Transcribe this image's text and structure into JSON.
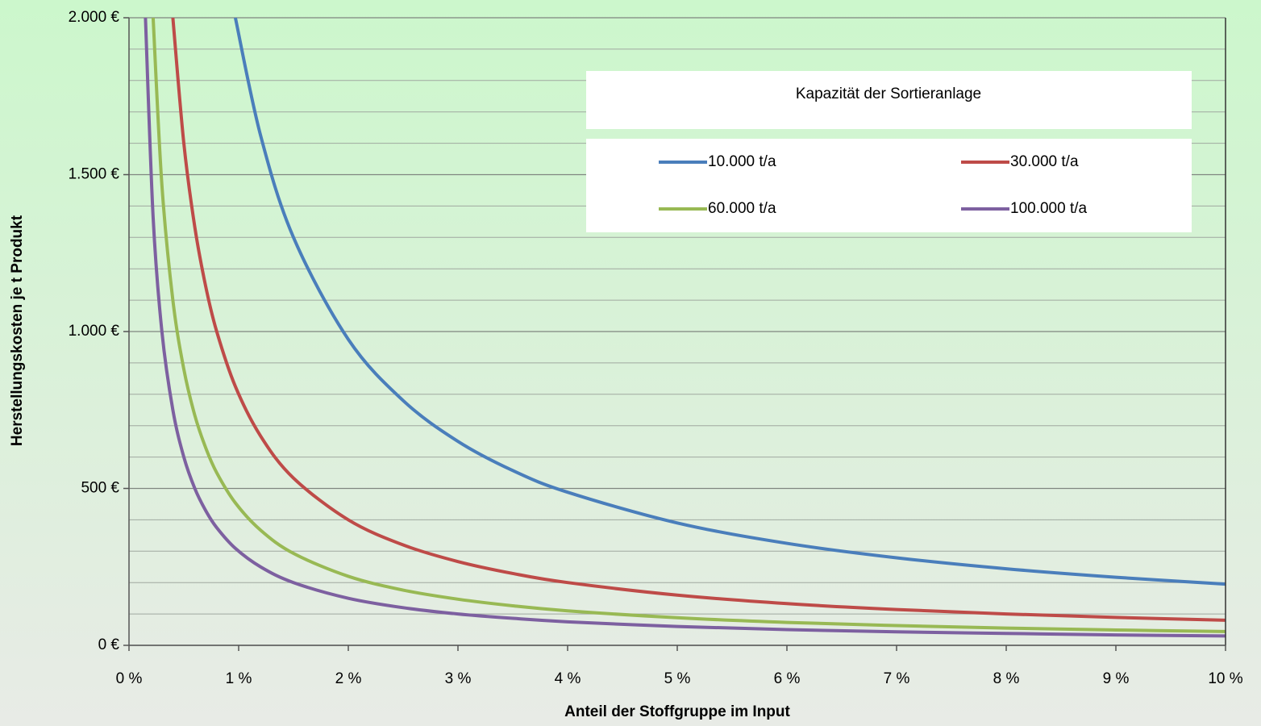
{
  "chart_data": {
    "type": "line",
    "x_label": "Anteil der Stoffgruppe im Input",
    "y_label": "Herstellungskosten je t Produkt",
    "legend_title": "Kapazität der Sortieranlage",
    "x": [
      0.15,
      0.22,
      0.3,
      0.4,
      0.5,
      0.6,
      0.7,
      0.8,
      0.97,
      1.2,
      1.5,
      2,
      2.5,
      3,
      3.5,
      4,
      5,
      6,
      7,
      8,
      9,
      10
    ],
    "series": [
      {
        "name": "10.000 t/a",
        "color": "#4a7ebb",
        "values": [
          null,
          null,
          null,
          null,
          null,
          null,
          null,
          null,
          2000,
          1625,
          1300,
          975,
          780,
          650,
          557,
          488,
          390,
          325,
          279,
          244,
          217,
          195
        ]
      },
      {
        "name": "30.000 t/a",
        "color": "#be4b48",
        "values": [
          null,
          null,
          null,
          2000,
          1600,
          1333,
          1143,
          1000,
          825,
          667,
          533,
          400,
          320,
          267,
          229,
          200,
          160,
          133,
          114,
          100,
          89,
          80
        ]
      },
      {
        "name": "60.000 t/a",
        "color": "#98b954",
        "values": [
          null,
          2000,
          1467,
          1100,
          880,
          733,
          629,
          550,
          454,
          367,
          293,
          220,
          176,
          147,
          126,
          110,
          88,
          73,
          63,
          55,
          49,
          44
        ]
      },
      {
        "name": "100.000 t/a",
        "color": "#7d60a0",
        "values": [
          2000,
          1364,
          1000,
          750,
          600,
          500,
          429,
          375,
          309,
          250,
          200,
          150,
          120,
          100,
          86,
          75,
          60,
          50,
          43,
          38,
          33,
          30
        ]
      }
    ],
    "xlim": [
      0,
      10
    ],
    "xticks": [
      {
        "value": 0,
        "label": "0 %"
      },
      {
        "value": 1,
        "label": "1 %"
      },
      {
        "value": 2,
        "label": "2 %"
      },
      {
        "value": 3,
        "label": "3 %"
      },
      {
        "value": 4,
        "label": "4 %"
      },
      {
        "value": 5,
        "label": "5 %"
      },
      {
        "value": 6,
        "label": "6 %"
      },
      {
        "value": 7,
        "label": "7 %"
      },
      {
        "value": 8,
        "label": "8 %"
      },
      {
        "value": 9,
        "label": "9 %"
      },
      {
        "value": 10,
        "label": "10 %"
      }
    ],
    "ylim": [
      0,
      2000
    ],
    "yticks": [
      {
        "value": 0,
        "label": "0 €"
      },
      {
        "value": 500,
        "label": "500 €"
      },
      {
        "value": 1000,
        "label": "1.000 €"
      },
      {
        "value": 1500,
        "label": "1.500 €"
      },
      {
        "value": 2000,
        "label": "2.000 €"
      }
    ],
    "minor_yticks": [
      100,
      200,
      300,
      400,
      600,
      700,
      800,
      900,
      1100,
      1200,
      1300,
      1400,
      1600,
      1700,
      1800,
      1900
    ],
    "grid": true
  }
}
